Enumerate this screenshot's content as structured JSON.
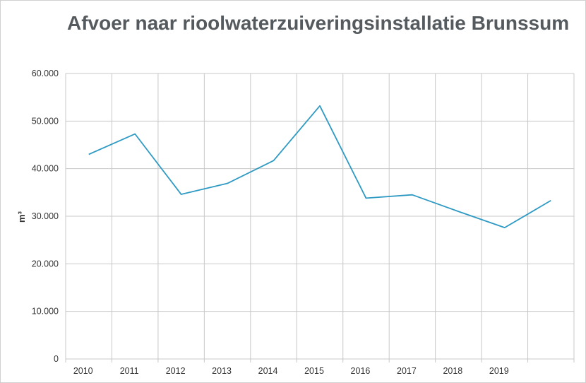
{
  "chart_data": {
    "type": "line",
    "title": "Afvoer naar rioolwaterzuiveringsinstallatie Brunssum",
    "xlabel": "",
    "ylabel": "m³",
    "categories": [
      "2010",
      "2011",
      "2012",
      "2013",
      "2014",
      "2015",
      "2016",
      "2017",
      "2018",
      "2019",
      ""
    ],
    "series": [
      {
        "values": [
          43000,
          47300,
          34600,
          36900,
          41700,
          53200,
          33800,
          34500,
          31000,
          27600,
          33300
        ]
      }
    ],
    "ylim": [
      0,
      60000
    ],
    "yticks": [
      0,
      10000,
      20000,
      30000,
      40000,
      50000,
      60000
    ],
    "ytick_labels": [
      "0",
      "10.000",
      "20.000",
      "30.000",
      "40.000",
      "50.000",
      "60.000"
    ],
    "grid": true,
    "legend": "none",
    "line_color": "#2e9ac4",
    "grid_color": "#c8c8c8"
  }
}
